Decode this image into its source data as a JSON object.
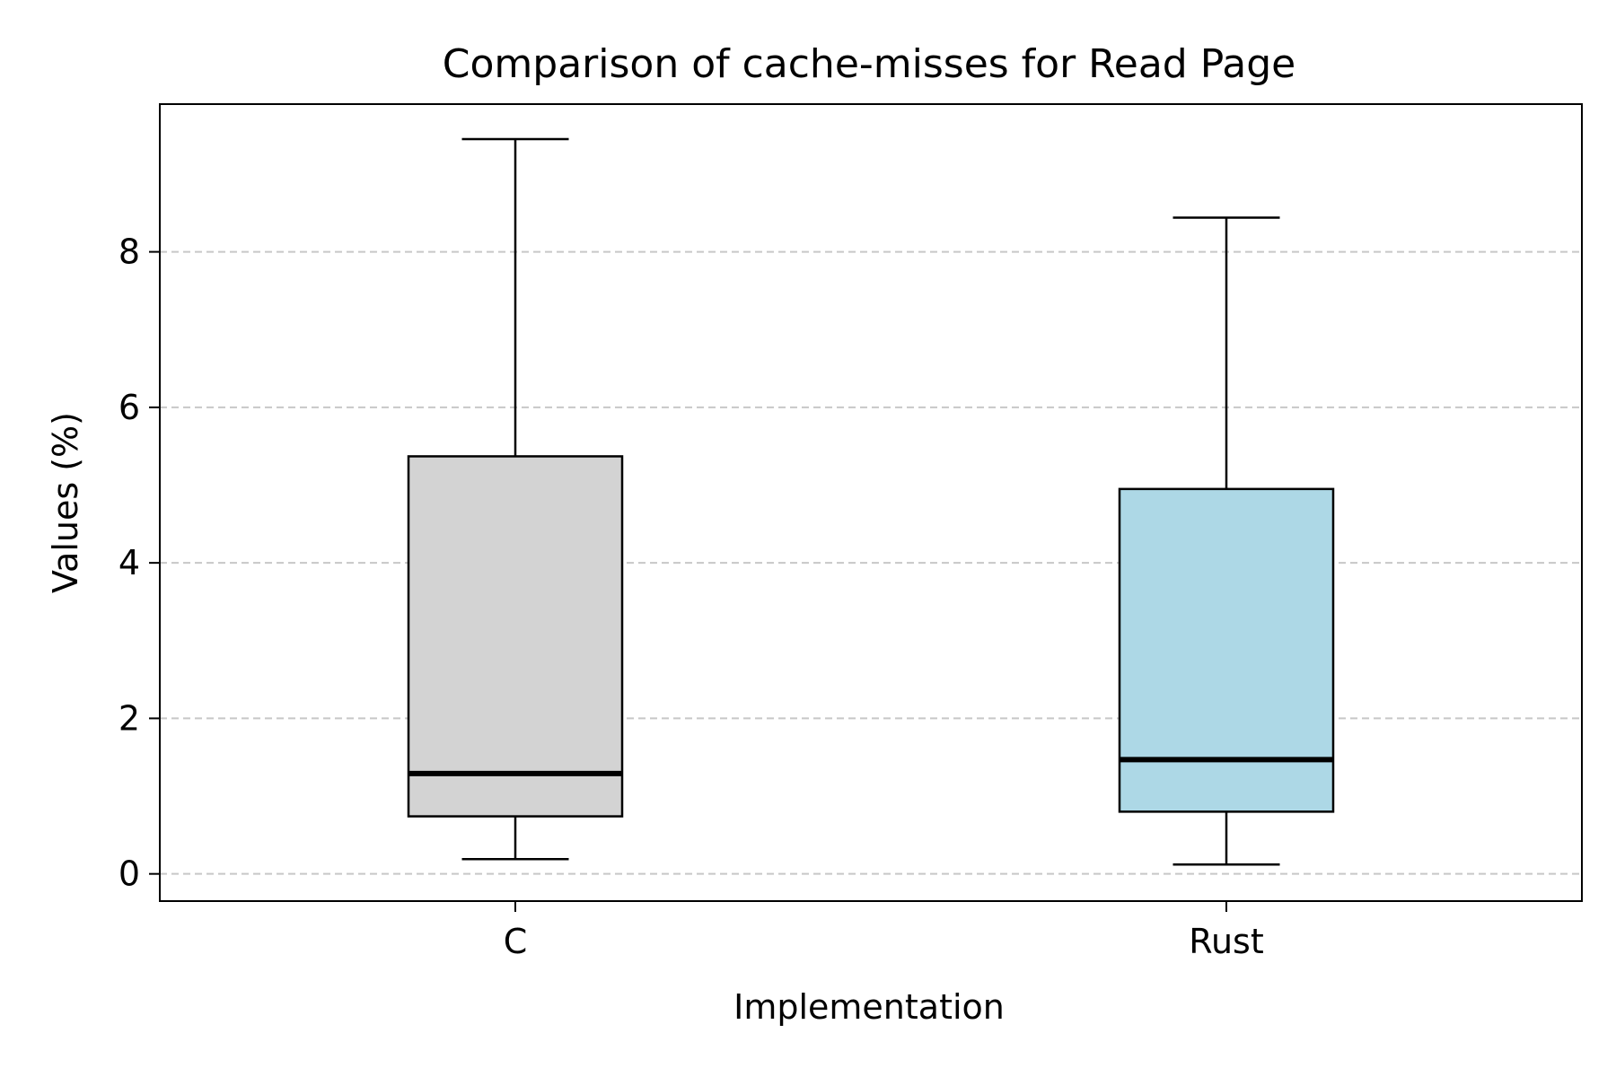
{
  "chart_data": {
    "type": "box",
    "title": "Comparison of cache-misses for Read Page",
    "xlabel": "Implementation",
    "ylabel": "Values (%)",
    "ylim": [
      -0.35,
      9.9
    ],
    "yticks": [
      0,
      2,
      4,
      6,
      8
    ],
    "grid": "y-dashed",
    "categories": [
      "C",
      "Rust"
    ],
    "boxes": [
      {
        "category": "C",
        "whisker_low": 0.19,
        "q1": 0.74,
        "median": 1.29,
        "q3": 5.37,
        "whisker_high": 9.45,
        "color": "#d3d3d3"
      },
      {
        "category": "Rust",
        "whisker_low": 0.12,
        "q1": 0.8,
        "median": 1.47,
        "q3": 4.95,
        "whisker_high": 8.44,
        "color": "#add8e6"
      }
    ]
  }
}
